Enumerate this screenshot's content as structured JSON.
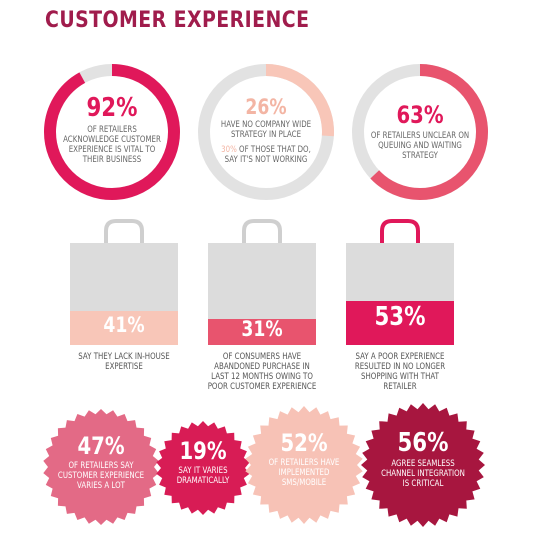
{
  "header": {
    "title": "CUSTOMER EXPERIENCE"
  },
  "colors": {
    "title": "#a01c4c",
    "crimson": "#e0185a",
    "peach": "#f8c6b8",
    "rose": "#e8546e",
    "gray_track": "#e2e2e2",
    "bag_gray": "#dcdcdc",
    "deep_red": "#b5173f",
    "burst_pink": "#e36a86",
    "burst_crimson": "#d81c55",
    "burst_peach": "#f7c2b6",
    "burst_wine": "#a7163f"
  },
  "donuts": [
    {
      "value": 92,
      "pct": "92%",
      "text": "OF RETAILERS ACKNOWLEDGE CUSTOMER EXPERIENCE IS VITAL TO THEIR BUSINESS",
      "color": "#e0185a"
    },
    {
      "value": 26,
      "pct": "26%",
      "text_top": "HAVE NO COMPANY WIDE STRATEGY IN PLACE",
      "text_bottom_pct": "30%",
      "text_bottom": "OF THOSE THAT DO, SAY IT'S NOT WORKING",
      "color": "#f8c6b8"
    },
    {
      "value": 63,
      "pct": "63%",
      "text": "OF RETAILERS UNCLEAR ON QUEUING AND WAITING STRATEGY",
      "color": "#e8546e"
    }
  ],
  "bags": [
    {
      "value": 41,
      "pct": "41%",
      "caption": "SAY THEY LACK IN-HOUSE EXPERTISE",
      "fill": "#f8c6b8"
    },
    {
      "value": 31,
      "pct": "31%",
      "caption": "OF CONSUMERS HAVE ABANDONED PURCHASE IN LAST 12 MONTHS OWING TO POOR CUSTOMER EXPERIENCE",
      "fill": "#e8546e"
    },
    {
      "value": 53,
      "pct": "53%",
      "caption": "SAY A POOR EXPERIENCE RESULTED IN NO LONGER SHOPPING WITH THAT RETAILER",
      "fill": "#e0185a"
    }
  ],
  "bursts": [
    {
      "pct": "47%",
      "text": "OF RETAILERS SAY CUSTOMER EXPERIENCE VARIES A LOT",
      "color": "#e36a86"
    },
    {
      "pct": "19%",
      "text": "SAY IT VARIES DRAMATICALLY",
      "color": "#d81c55"
    },
    {
      "pct": "52%",
      "text": "OF RETAILERS HAVE IMPLEMENTED SMS/MOBILE",
      "color": "#f7c2b6"
    },
    {
      "pct": "56%",
      "text": "AGREE SEAMLESS CHANNEL INTEGRATION IS CRITICAL",
      "color": "#a7163f"
    }
  ]
}
